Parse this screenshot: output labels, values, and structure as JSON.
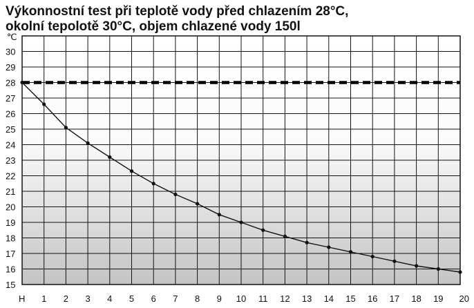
{
  "chart_data": {
    "type": "line",
    "title_lines": [
      "Výkonnostní test při teplotě vody před chlazením 28°C,",
      "okolní tepolotě 30°C, objem chlazené vody 150l"
    ],
    "y_unit": "℃",
    "x_ticks": [
      "H",
      "1",
      "2",
      "3",
      "4",
      "5",
      "6",
      "7",
      "8",
      "9",
      "10",
      "11",
      "12",
      "13",
      "14",
      "15",
      "16",
      "17",
      "18",
      "19",
      "20"
    ],
    "y_ticks": [
      "30",
      "29",
      "28",
      "27",
      "26",
      "25",
      "24",
      "23",
      "22",
      "21",
      "20",
      "19",
      "18",
      "17",
      "16",
      "15"
    ],
    "y_tick_values": [
      30,
      29,
      28,
      27,
      26,
      25,
      24,
      23,
      22,
      21,
      20,
      19,
      18,
      17,
      16,
      15
    ],
    "ylim": [
      15,
      31
    ],
    "xlim": [
      0,
      20
    ],
    "grid": true,
    "reference_line": {
      "value": 28,
      "style": "dashed"
    },
    "series": [
      {
        "x": [
          0,
          1,
          2,
          3,
          4,
          5,
          6,
          7,
          8,
          9,
          10,
          11,
          12,
          13,
          14,
          15,
          16,
          17,
          18,
          19,
          20
        ],
        "values": [
          28.0,
          26.6,
          25.1,
          24.1,
          23.2,
          22.3,
          21.5,
          20.8,
          20.2,
          19.5,
          19.0,
          18.5,
          18.1,
          17.7,
          17.4,
          17.1,
          16.8,
          16.5,
          16.2,
          16.0,
          15.8
        ]
      }
    ],
    "colors": {
      "line": "#111111",
      "grid": "#111111",
      "reference": "#000000"
    }
  }
}
